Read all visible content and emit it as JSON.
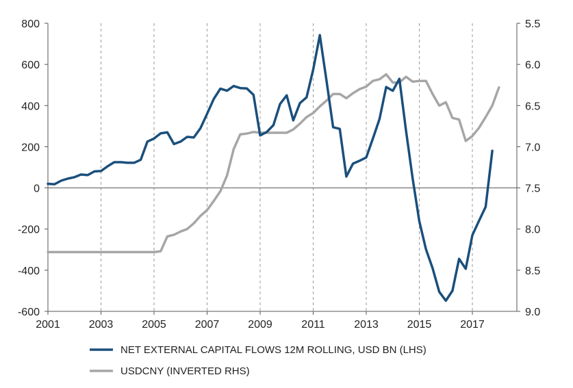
{
  "colors": {
    "flows": "#1a4f7c",
    "usdcny": "#a6a6a6",
    "grid": "#9a9a9a",
    "axis": "#555555"
  },
  "chart_data": {
    "type": "line",
    "title": "",
    "xlabel": "",
    "ylabel_left": "",
    "ylabel_right": "",
    "xlim": [
      2001,
      2018.6
    ],
    "ylim_left": [
      -600,
      800
    ],
    "ylim_right_inverted": [
      5.5,
      9.0
    ],
    "x_ticks": [
      2001,
      2003,
      2005,
      2007,
      2009,
      2011,
      2013,
      2015,
      2017
    ],
    "x_tick_labels": [
      "2001",
      "2003",
      "2005",
      "2007",
      "2009",
      "2011",
      "2013",
      "2015",
      "2017"
    ],
    "y_left_ticks": [
      800,
      600,
      400,
      200,
      0,
      -200,
      -400,
      -600
    ],
    "y_left_tick_labels": [
      "800",
      "600",
      "400",
      "200",
      "0",
      "-200",
      "-400",
      "-600"
    ],
    "y_right_ticks": [
      5.5,
      6.0,
      6.5,
      7.0,
      7.5,
      8.0,
      8.5,
      9.0
    ],
    "y_right_tick_labels": [
      "5.5",
      "6.0",
      "6.5",
      "7.0",
      "7.5",
      "8.0",
      "8.5",
      "9.0"
    ],
    "grid": "vertical dashed",
    "legend_position": "bottom",
    "series": [
      {
        "name": "NET EXTERNAL CAPITAL FLOWS 12M ROLLING, USD BN (LHS)",
        "axis": "left",
        "x": [
          2001.0,
          2001.25,
          2001.5,
          2001.75,
          2002.0,
          2002.25,
          2002.5,
          2002.75,
          2003.0,
          2003.25,
          2003.5,
          2003.75,
          2004.0,
          2004.25,
          2004.5,
          2004.75,
          2005.0,
          2005.25,
          2005.5,
          2005.75,
          2006.0,
          2006.25,
          2006.5,
          2006.75,
          2007.0,
          2007.25,
          2007.5,
          2007.75,
          2008.0,
          2008.25,
          2008.5,
          2008.75,
          2009.0,
          2009.25,
          2009.5,
          2009.75,
          2010.0,
          2010.25,
          2010.5,
          2010.75,
          2011.0,
          2011.25,
          2011.5,
          2011.75,
          2012.0,
          2012.25,
          2012.5,
          2012.75,
          2013.0,
          2013.25,
          2013.5,
          2013.75,
          2014.0,
          2014.25,
          2014.5,
          2014.75,
          2015.0,
          2015.25,
          2015.5,
          2015.75,
          2016.0,
          2016.25,
          2016.5,
          2016.75,
          2017.0,
          2017.25,
          2017.5,
          2017.75
        ],
        "values": [
          20,
          18,
          35,
          45,
          52,
          65,
          62,
          80,
          82,
          105,
          125,
          125,
          122,
          122,
          137,
          225,
          240,
          265,
          270,
          213,
          225,
          248,
          245,
          290,
          360,
          432,
          482,
          472,
          495,
          485,
          483,
          452,
          255,
          272,
          305,
          408,
          450,
          328,
          412,
          440,
          575,
          742,
          522,
          295,
          287,
          55,
          118,
          132,
          148,
          240,
          335,
          490,
          472,
          530,
          278,
          45,
          -162,
          -298,
          -390,
          -505,
          -548,
          -500,
          -345,
          -393,
          -230,
          -160,
          -92,
          180
        ]
      },
      {
        "name": "USDCNY (INVERTED RHS)",
        "axis": "right",
        "x": [
          2001.0,
          2002.0,
          2003.0,
          2004.0,
          2005.0,
          2005.25,
          2005.5,
          2005.75,
          2006.0,
          2006.25,
          2006.5,
          2006.75,
          2007.0,
          2007.25,
          2007.5,
          2007.75,
          2008.0,
          2008.25,
          2008.5,
          2008.75,
          2009.0,
          2009.5,
          2010.0,
          2010.25,
          2010.5,
          2010.75,
          2011.0,
          2011.25,
          2011.5,
          2011.75,
          2012.0,
          2012.25,
          2012.5,
          2012.75,
          2013.0,
          2013.25,
          2013.5,
          2013.75,
          2014.0,
          2014.25,
          2014.5,
          2014.75,
          2015.0,
          2015.25,
          2015.5,
          2015.75,
          2016.0,
          2016.25,
          2016.5,
          2016.75,
          2017.0,
          2017.25,
          2017.5,
          2017.75,
          2018.0
        ],
        "values": [
          8.28,
          8.28,
          8.28,
          8.28,
          8.28,
          8.27,
          8.09,
          8.07,
          8.03,
          8.0,
          7.93,
          7.84,
          7.77,
          7.66,
          7.54,
          7.35,
          7.03,
          6.85,
          6.84,
          6.82,
          6.83,
          6.83,
          6.83,
          6.79,
          6.72,
          6.64,
          6.59,
          6.51,
          6.44,
          6.36,
          6.36,
          6.41,
          6.35,
          6.3,
          6.27,
          6.2,
          6.18,
          6.12,
          6.22,
          6.22,
          6.15,
          6.21,
          6.2,
          6.2,
          6.36,
          6.5,
          6.46,
          6.65,
          6.67,
          6.93,
          6.87,
          6.77,
          6.64,
          6.5,
          6.28
        ]
      }
    ]
  }
}
